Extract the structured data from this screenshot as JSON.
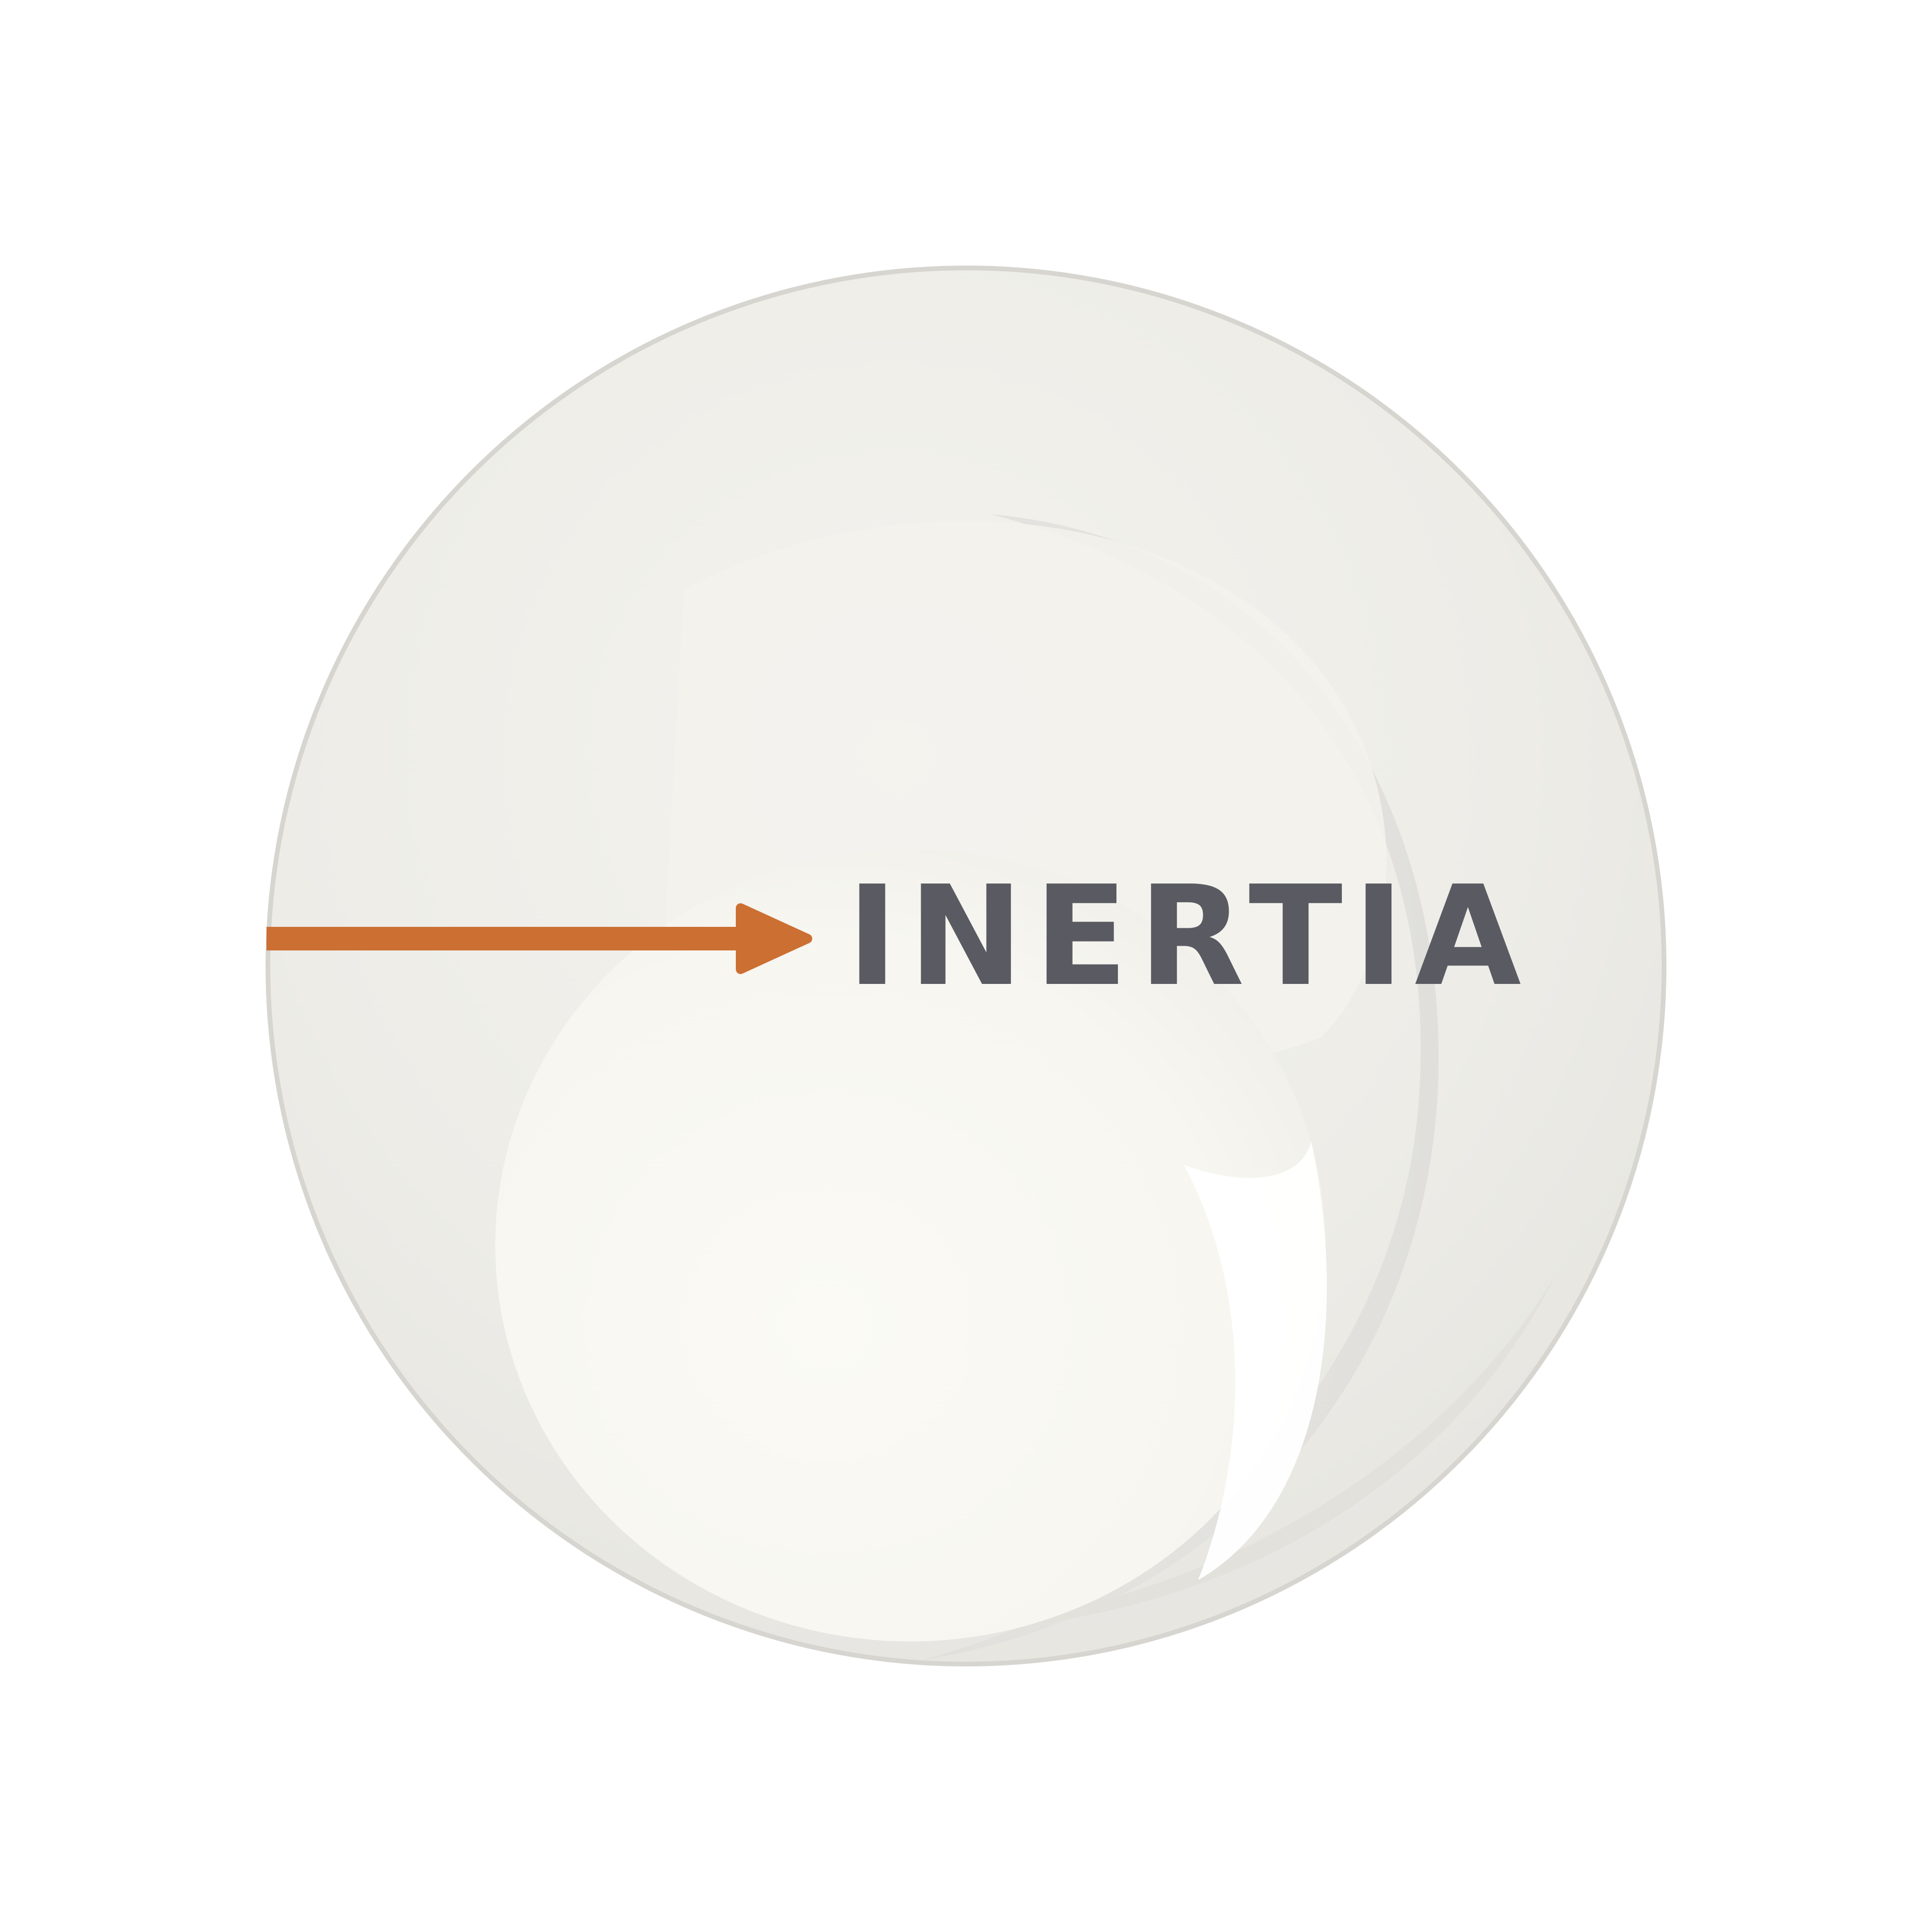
{
  "label": "INERTIA",
  "colors": {
    "background": "#ffffff",
    "sphere_outer": "#ecebe6",
    "sphere_inner": "#f6f5ef",
    "arrow": "#cc6f32",
    "label_text": "#5a5b62"
  },
  "icons": {
    "arrow": "arrow-right-icon",
    "sphere": "sphere-shape"
  }
}
